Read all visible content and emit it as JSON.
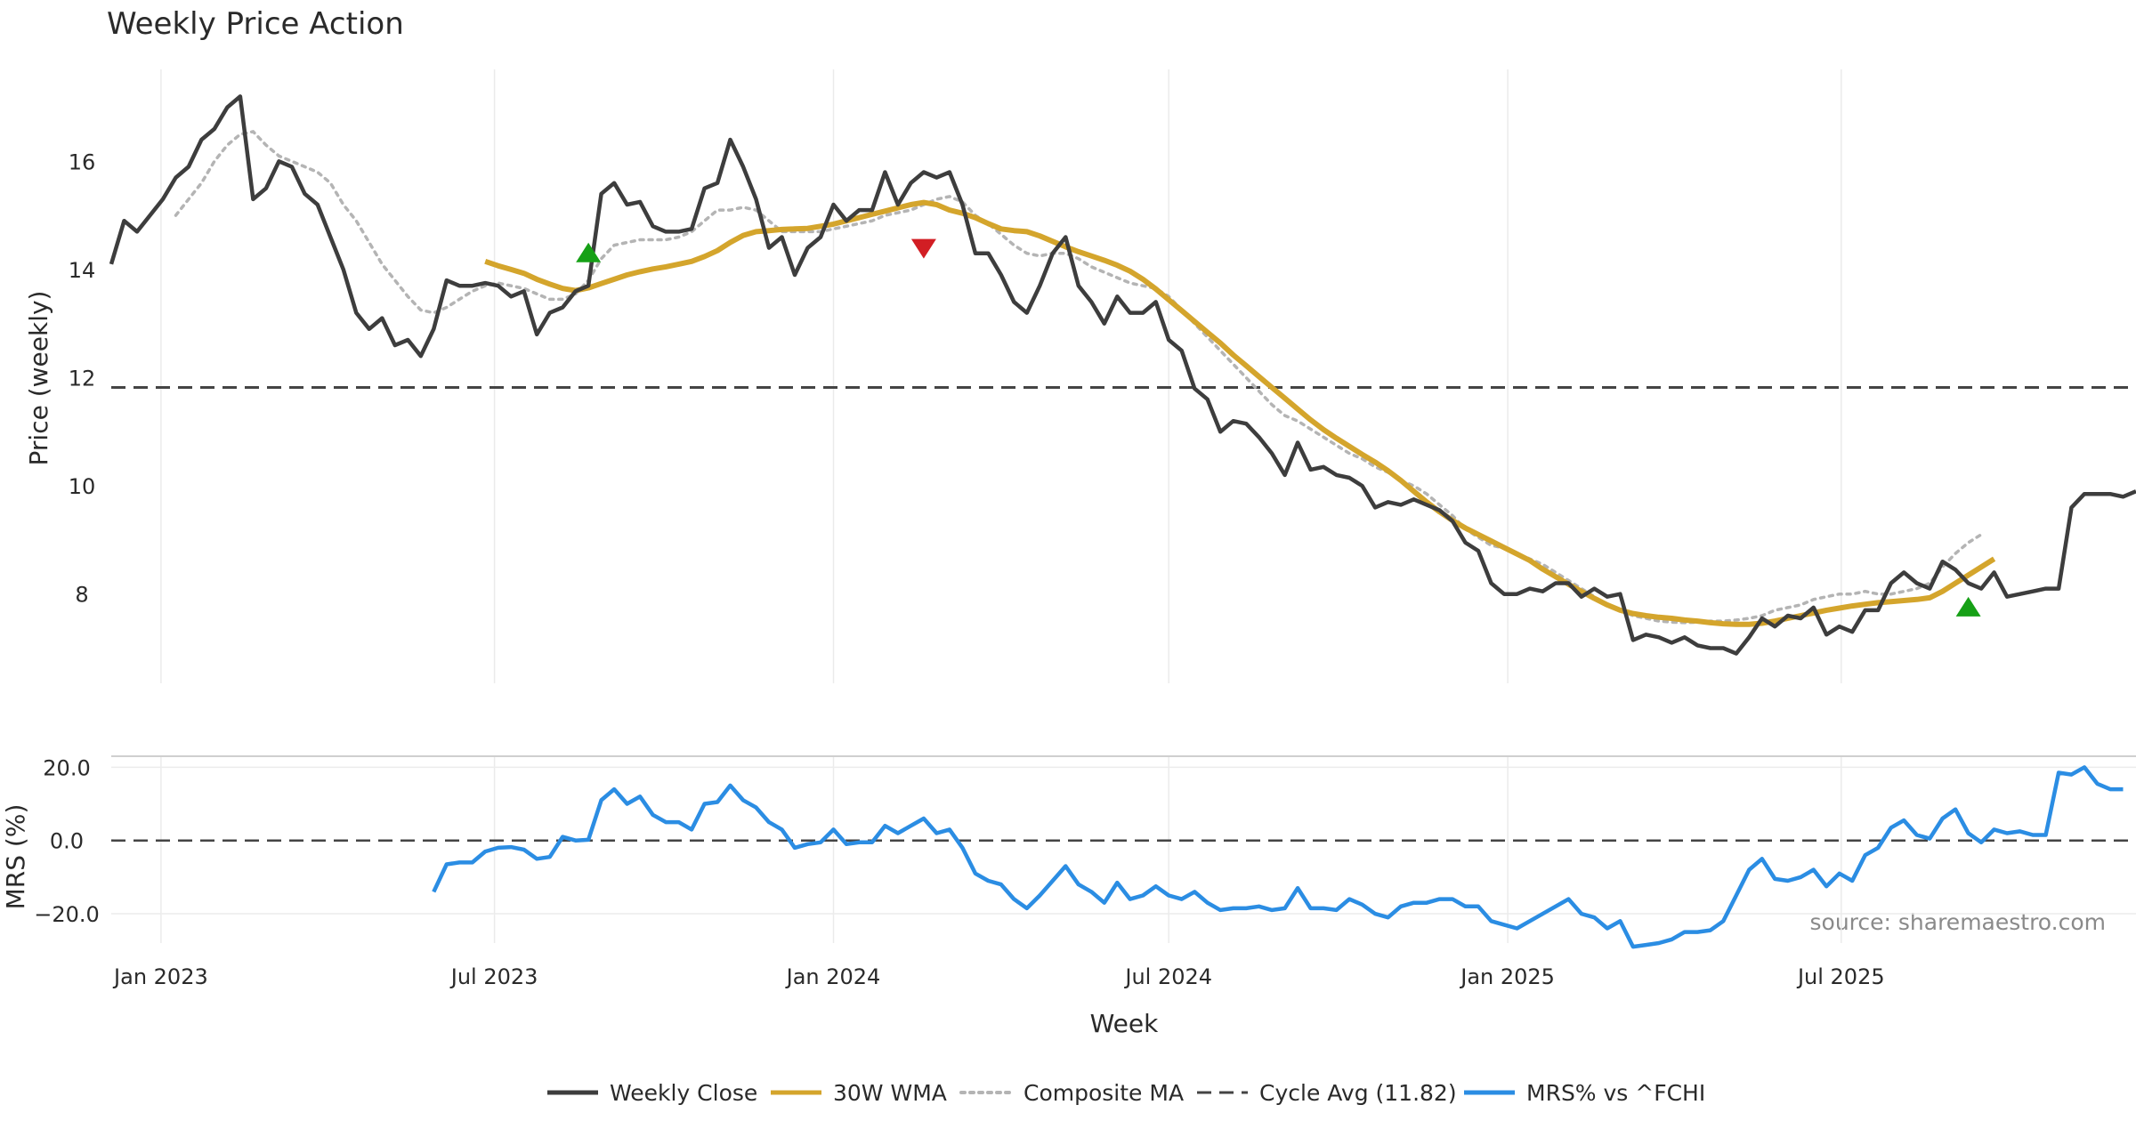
{
  "chart_data": [
    {
      "type": "line",
      "title": "Weekly Price Action",
      "ylabel": "Price (weekly)",
      "xlabel": "Week",
      "x_start": "2022-12-05",
      "x_step_days": 7,
      "ylim": [
        6.35,
        17.7
      ],
      "yticks": [
        "8",
        "10",
        "12",
        "14",
        "16"
      ],
      "grid": true,
      "series": [
        {
          "name": "Weekly Close",
          "color": "#3d3d3d",
          "values": [
            14.1,
            14.9,
            14.7,
            15.0,
            15.3,
            15.7,
            15.9,
            16.4,
            16.6,
            17.0,
            17.2,
            15.3,
            15.5,
            16.0,
            15.9,
            15.4,
            15.2,
            14.6,
            14.0,
            13.2,
            12.9,
            13.1,
            12.6,
            12.7,
            12.4,
            12.9,
            13.8,
            13.7,
            13.7,
            13.75,
            13.7,
            13.5,
            13.6,
            12.8,
            13.2,
            13.3,
            13.6,
            13.7,
            15.4,
            15.6,
            15.2,
            15.25,
            14.8,
            14.7,
            14.7,
            14.75,
            15.5,
            15.6,
            16.4,
            15.9,
            15.3,
            14.4,
            14.6,
            13.9,
            14.4,
            14.6,
            15.2,
            14.9,
            15.1,
            15.1,
            15.8,
            15.2,
            15.6,
            15.8,
            15.7,
            15.8,
            15.2,
            14.3,
            14.3,
            13.9,
            13.4,
            13.2,
            13.7,
            14.3,
            14.6,
            13.7,
            13.4,
            13.0,
            13.5,
            13.2,
            13.2,
            13.4,
            12.7,
            12.5,
            11.8,
            11.6,
            11.0,
            11.2,
            11.15,
            10.9,
            10.6,
            10.2,
            10.8,
            10.3,
            10.35,
            10.2,
            10.15,
            10.0,
            9.6,
            9.7,
            9.65,
            9.75,
            9.65,
            9.55,
            9.35,
            8.95,
            8.8,
            8.2,
            8.0,
            8.0,
            8.1,
            8.05,
            8.2,
            8.2,
            7.95,
            8.1,
            7.95,
            8.0,
            7.15,
            7.25,
            7.2,
            7.1,
            7.2,
            7.05,
            7.0,
            7.0,
            6.9,
            7.2,
            7.55,
            7.4,
            7.6,
            7.55,
            7.75,
            7.25,
            7.4,
            7.3,
            7.7,
            7.7,
            8.2,
            8.4,
            8.2,
            8.1,
            8.6,
            8.45,
            8.2,
            8.1,
            8.4,
            7.95,
            8.0,
            8.05,
            8.1,
            8.1,
            9.6,
            9.85,
            9.85,
            9.85,
            9.8,
            9.9
          ]
        },
        {
          "name": "30W WMA",
          "color": "#d4a52c",
          "start_index": 29,
          "values": [
            14.15,
            14.07,
            14.0,
            13.93,
            13.82,
            13.73,
            13.65,
            13.61,
            13.66,
            13.74,
            13.82,
            13.9,
            13.96,
            14.01,
            14.05,
            14.1,
            14.15,
            14.24,
            14.35,
            14.5,
            14.63,
            14.7,
            14.72,
            14.74,
            14.75,
            14.76,
            14.8,
            14.84,
            14.9,
            14.96,
            15.02,
            15.08,
            15.14,
            15.2,
            15.24,
            15.2,
            15.1,
            15.04,
            14.96,
            14.85,
            14.75,
            14.72,
            14.7,
            14.62,
            14.52,
            14.42,
            14.33,
            14.25,
            14.17,
            14.08,
            13.97,
            13.82,
            13.64,
            13.44,
            13.24,
            13.04,
            12.84,
            12.64,
            12.42,
            12.22,
            12.02,
            11.82,
            11.62,
            11.42,
            11.22,
            11.04,
            10.88,
            10.73,
            10.58,
            10.44,
            10.28,
            10.1,
            9.9,
            9.7,
            9.52,
            9.36,
            9.22,
            9.1,
            8.98,
            8.86,
            8.74,
            8.62,
            8.46,
            8.32,
            8.18,
            8.05,
            7.92,
            7.8,
            7.7,
            7.64,
            7.6,
            7.57,
            7.55,
            7.52,
            7.5,
            7.47,
            7.45,
            7.44,
            7.44,
            7.46,
            7.5,
            7.55,
            7.6,
            7.65,
            7.7,
            7.74,
            7.78,
            7.81,
            7.84,
            7.86,
            7.88,
            7.9,
            7.93,
            8.05,
            8.2,
            8.35,
            8.5,
            8.65
          ]
        },
        {
          "name": "Composite MA",
          "color": "#b4b4b4",
          "values": [
            null,
            null,
            null,
            null,
            null,
            15.0,
            15.3,
            15.6,
            16.0,
            16.3,
            16.5,
            16.55,
            16.3,
            16.1,
            16.0,
            15.9,
            15.8,
            15.6,
            15.2,
            14.9,
            14.5,
            14.1,
            13.8,
            13.5,
            13.25,
            13.2,
            13.3,
            13.45,
            13.6,
            13.7,
            13.75,
            13.7,
            13.65,
            13.55,
            13.45,
            13.45,
            13.55,
            13.8,
            14.2,
            14.45,
            14.5,
            14.55,
            14.55,
            14.55,
            14.6,
            14.7,
            14.9,
            15.1,
            15.1,
            15.15,
            15.1,
            14.9,
            14.7,
            14.7,
            14.7,
            14.7,
            14.75,
            14.8,
            14.85,
            14.9,
            15.0,
            15.05,
            15.1,
            15.2,
            15.3,
            15.35,
            15.25,
            15.0,
            14.85,
            14.65,
            14.45,
            14.3,
            14.25,
            14.3,
            14.3,
            14.2,
            14.05,
            13.95,
            13.85,
            13.75,
            13.7,
            13.65,
            13.5,
            13.25,
            13.0,
            12.75,
            12.5,
            12.25,
            12.0,
            11.75,
            11.5,
            11.3,
            11.2,
            11.05,
            10.9,
            10.75,
            10.6,
            10.5,
            10.35,
            10.25,
            10.1,
            10.0,
            9.85,
            9.65,
            9.45,
            9.2,
            9.05,
            8.9,
            8.85,
            8.75,
            8.65,
            8.55,
            8.4,
            8.25,
            8.1,
            7.95,
            7.8,
            7.7,
            7.6,
            7.55,
            7.5,
            7.48,
            7.47,
            7.48,
            7.5,
            7.5,
            7.52,
            7.55,
            7.6,
            7.7,
            7.75,
            7.8,
            7.9,
            7.95,
            8.0,
            8.0,
            8.05,
            8.0,
            8.0,
            8.05,
            8.1,
            8.2,
            8.5,
            8.75,
            8.95,
            9.1
          ]
        }
      ],
      "reference_line": {
        "name": "Cycle Avg (11.82)",
        "value": 11.82,
        "color": "#444444",
        "style": "dashed"
      },
      "markers": [
        {
          "type": "buy",
          "index": 37,
          "value": 14.3,
          "color": "#16a016"
        },
        {
          "type": "sell",
          "index": 63,
          "value": 14.4,
          "color": "#d21e24"
        },
        {
          "type": "buy",
          "index": 144,
          "value": 7.75,
          "color": "#16a016"
        }
      ],
      "annotation": "source: sharemaestro.com"
    },
    {
      "type": "line",
      "ylabel": "MRS (%)",
      "ylim": [
        -28,
        23
      ],
      "yticks": [
        "20.0",
        "0.0",
        "−20.0"
      ],
      "xticks": [
        "Jan 2023",
        "Jul 2023",
        "Jan 2024",
        "Jul 2024",
        "Jan 2025",
        "Jul 2025"
      ],
      "xtick_dates": [
        "2023-01-01",
        "2023-07-01",
        "2024-01-01",
        "2024-07-01",
        "2025-01-01",
        "2025-07-01"
      ],
      "series": [
        {
          "name": "MRS% vs ^FCHI",
          "color": "#2b8de3",
          "start_index": 25,
          "values": [
            -14,
            -6.5,
            -6,
            -6,
            -3,
            -2,
            -1.8,
            -2.5,
            -5,
            -4.5,
            1,
            0,
            0.2,
            11,
            14,
            10,
            12,
            7,
            5,
            5,
            3,
            10,
            10.5,
            15,
            11,
            9,
            5,
            3,
            -2,
            -1,
            -0.5,
            3,
            -1,
            -0.5,
            -0.5,
            4,
            2,
            4,
            6,
            2,
            3,
            -2,
            -9,
            -11,
            -12,
            -16,
            -18.5,
            -15,
            -11,
            -7,
            -12,
            -14,
            -17,
            -11.5,
            -16,
            -15,
            -12.5,
            -15,
            -16,
            -14,
            -17,
            -19,
            -18.5,
            -18.5,
            -18,
            -19,
            -18.5,
            -13,
            -18.5,
            -18.5,
            -19,
            -16,
            -17.5,
            -20,
            -21,
            -18,
            -17,
            -17,
            -16,
            -16,
            -18,
            -18,
            -22,
            -23,
            -24,
            -22,
            -20,
            -18,
            -16,
            -20,
            -21,
            -24,
            -22,
            -29,
            -28.5,
            -28,
            -27,
            -25,
            -25,
            -24.5,
            -22,
            -15,
            -8,
            -5,
            -10.5,
            -11,
            -10,
            -8,
            -12.5,
            -9,
            -11,
            -4,
            -2,
            3.5,
            5.5,
            1.5,
            0.5,
            6,
            8.5,
            2,
            -0.5,
            3,
            2,
            2.5,
            1.5,
            1.5,
            18.5,
            18,
            20,
            15.5,
            14,
            14
          ]
        }
      ],
      "reference_line": {
        "value": 0,
        "color": "#444444",
        "style": "dashed"
      }
    }
  ],
  "legend": [
    {
      "label": "Weekly Close",
      "style": "solid",
      "color": "#3d3d3d"
    },
    {
      "label": "30W WMA",
      "style": "solid",
      "color": "#d4a52c"
    },
    {
      "label": "Composite MA",
      "style": "dotted",
      "color": "#b4b4b4"
    },
    {
      "label": "Cycle Avg (11.82)",
      "style": "dashed",
      "color": "#444444"
    },
    {
      "label": "MRS% vs ^FCHI",
      "style": "solid",
      "color": "#2b8de3"
    }
  ]
}
